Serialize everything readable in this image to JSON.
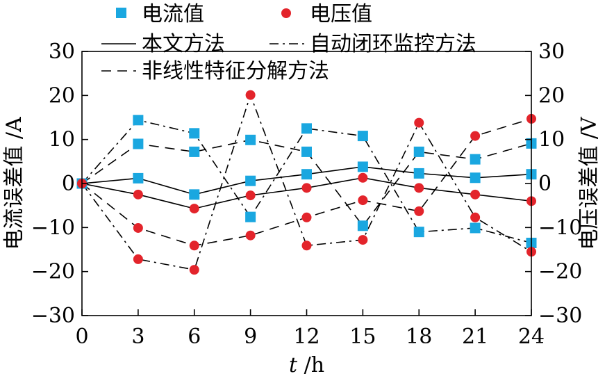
{
  "chart_data": {
    "type": "line",
    "x": [
      0,
      3,
      6,
      9,
      12,
      15,
      18,
      21,
      24
    ],
    "xlim": [
      0,
      24
    ],
    "xticks": [
      "0",
      "3",
      "6",
      "9",
      "12",
      "15",
      "18",
      "21",
      "24"
    ],
    "xlabel_italic": "t",
    "xlabel_unit": " /h",
    "ylabel_left": "电流误差值 /A",
    "ylabel_right": "电压误差值 /V",
    "ylim_left": [
      -30,
      30
    ],
    "ylim_right": [
      -30,
      30
    ],
    "yticks_left": [
      "30",
      "20",
      "10",
      "0",
      "−10",
      "−20",
      "−30"
    ],
    "yticks_right": [
      "30",
      "20",
      "10",
      "0",
      "−10",
      "−20",
      "−30"
    ],
    "grid": false,
    "legend": {
      "current_label": "电流值",
      "voltage_label": "电压值",
      "proposed_label": "本文方法",
      "closed_loop_label": "自动闭环监控方法",
      "nonlinear_label": "非线性特征分解方法"
    },
    "marker_colors": {
      "current": "#1aa7e0",
      "voltage": "#e3242b"
    },
    "series": [
      {
        "method": "proposed",
        "kind": "current",
        "line": "solid",
        "values": [
          0,
          1.2,
          -2.5,
          0.6,
          2.1,
          3.8,
          2.3,
          1.3,
          2.1
        ]
      },
      {
        "method": "proposed",
        "kind": "voltage",
        "line": "solid",
        "values": [
          0,
          -2.5,
          -5.7,
          -2.7,
          -1.0,
          1.3,
          -1.0,
          -2.5,
          -4.0
        ]
      },
      {
        "method": "closed_loop",
        "kind": "current",
        "line": "dashdot",
        "values": [
          0,
          14.4,
          11.4,
          -7.6,
          12.5,
          10.8,
          -11.0,
          -10.1,
          -13.5
        ]
      },
      {
        "method": "closed_loop",
        "kind": "voltage",
        "line": "dashdot",
        "values": [
          0,
          -17.2,
          -19.6,
          20.1,
          -14.1,
          -12.8,
          13.8,
          -7.7,
          -15.5
        ]
      },
      {
        "method": "nonlinear",
        "kind": "current",
        "line": "dashed",
        "values": [
          0,
          9.0,
          7.2,
          9.9,
          7.2,
          -9.6,
          7.2,
          5.5,
          9.1
        ]
      },
      {
        "method": "nonlinear",
        "kind": "voltage",
        "line": "dashed",
        "values": [
          0,
          -10.1,
          -14.1,
          -11.8,
          -7.7,
          -3.8,
          -6.3,
          10.8,
          14.7
        ]
      }
    ]
  }
}
